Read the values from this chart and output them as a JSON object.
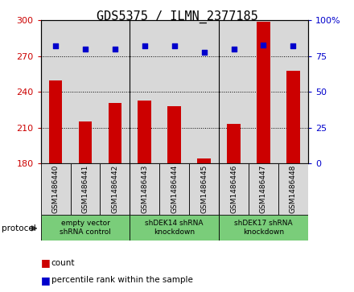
{
  "title": "GDS5375 / ILMN_2377185",
  "samples": [
    "GSM1486440",
    "GSM1486441",
    "GSM1486442",
    "GSM1486443",
    "GSM1486444",
    "GSM1486445",
    "GSM1486446",
    "GSM1486447",
    "GSM1486448"
  ],
  "counts": [
    250,
    215,
    231,
    233,
    228,
    184,
    213,
    299,
    258
  ],
  "percentiles": [
    82,
    80,
    80,
    82,
    82,
    78,
    80,
    83,
    82
  ],
  "ymin": 180,
  "ymax": 300,
  "yticks": [
    180,
    210,
    240,
    270,
    300
  ],
  "yright_min": 0,
  "yright_max": 100,
  "yright_ticks": [
    0,
    25,
    50,
    75,
    100
  ],
  "bar_color": "#cc0000",
  "dot_color": "#0000cc",
  "bg_color": "#d8d8d8",
  "groups": [
    {
      "label": "empty vector\nshRNA control",
      "start": 0,
      "end": 3,
      "color": "#7acd7a"
    },
    {
      "label": "shDEK14 shRNA\nknockdown",
      "start": 3,
      "end": 6,
      "color": "#7acd7a"
    },
    {
      "label": "shDEK17 shRNA\nknockdown",
      "start": 6,
      "end": 9,
      "color": "#7acd7a"
    }
  ],
  "protocol_label": "protocol",
  "legend_count": "count",
  "legend_percentile": "percentile rank within the sample",
  "title_fontsize": 11,
  "tick_fontsize": 8,
  "label_fontsize": 8
}
